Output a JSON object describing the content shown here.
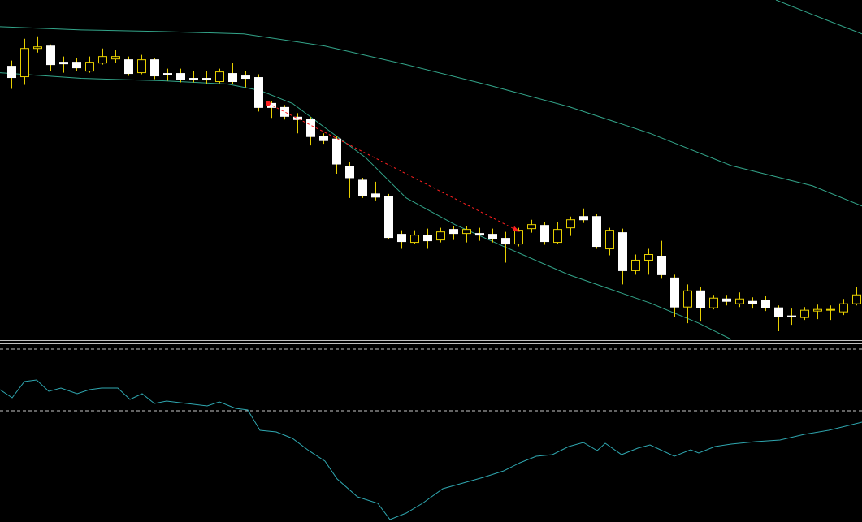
{
  "chart_data": [
    {
      "type": "candlestick",
      "xlim": [
        0,
        1061
      ],
      "ylim": [
        0,
        420
      ],
      "bull_color": "#000000",
      "bear_color": "#ffffff",
      "wick_color": "#e8d000",
      "bull_outline": "#e8d000",
      "x": [
        14,
        30,
        46,
        62,
        78,
        94,
        110,
        126,
        142,
        158,
        174,
        190,
        206,
        222,
        238,
        254,
        270,
        286,
        302,
        318,
        334,
        350,
        366,
        382,
        398,
        414,
        430,
        446,
        462,
        478,
        494,
        510,
        526,
        542,
        558,
        574,
        590,
        606,
        622,
        638,
        654,
        670,
        686,
        702,
        718,
        734,
        750,
        766,
        782,
        798,
        814,
        830,
        846,
        862,
        878,
        894,
        910,
        926,
        942,
        958,
        974,
        990,
        1006,
        1022,
        1038,
        1054
      ],
      "open": [
        338,
        325,
        360,
        363,
        343,
        343,
        332,
        342,
        347,
        346,
        330,
        346,
        329,
        329,
        323,
        323,
        319,
        329,
        326,
        324,
        292,
        287,
        275,
        272,
        251,
        248,
        214,
        197,
        180,
        177,
        130,
        120,
        129,
        123,
        136,
        131,
        131,
        130,
        125,
        118,
        137,
        141,
        120,
        138,
        152,
        152,
        112,
        132,
        85,
        98,
        103,
        76,
        40,
        60,
        39,
        50,
        44,
        47,
        48,
        39,
        29,
        27,
        35,
        36,
        34,
        44
      ],
      "high": [
        345,
        372,
        375,
        365,
        350,
        348,
        350,
        360,
        358,
        350,
        352,
        348,
        335,
        335,
        332,
        332,
        335,
        342,
        332,
        328,
        295,
        290,
        280,
        275,
        255,
        252,
        220,
        200,
        195,
        180,
        135,
        135,
        137,
        138,
        140,
        140,
        138,
        137,
        133,
        138,
        148,
        145,
        145,
        152,
        162,
        155,
        138,
        137,
        105,
        112,
        122,
        80,
        68,
        65,
        55,
        55,
        58,
        52,
        54,
        42,
        38,
        40,
        43,
        42,
        50,
        65
      ],
      "low": [
        310,
        315,
        355,
        332,
        330,
        332,
        330,
        340,
        342,
        326,
        328,
        322,
        320,
        318,
        318,
        316,
        317,
        316,
        312,
        282,
        274,
        272,
        255,
        240,
        242,
        205,
        175,
        175,
        172,
        124,
        112,
        118,
        112,
        120,
        123,
        120,
        122,
        120,
        95,
        115,
        132,
        117,
        118,
        128,
        144,
        112,
        104,
        68,
        80,
        80,
        75,
        28,
        20,
        22,
        37,
        42,
        40,
        38,
        35,
        10,
        18,
        24,
        25,
        24,
        30,
        42
      ],
      "close": [
        324,
        360,
        362,
        340,
        341,
        336,
        343,
        350,
        350,
        329,
        346,
        326,
        328,
        322,
        321,
        321,
        331,
        319,
        323,
        287,
        287,
        276,
        272,
        251,
        246,
        217,
        200,
        178,
        176,
        126,
        121,
        129,
        122,
        133,
        131,
        136,
        129,
        125,
        118,
        135,
        142,
        121,
        136,
        148,
        148,
        115,
        135,
        85,
        98,
        105,
        80,
        40,
        60,
        39,
        51,
        47,
        50,
        44,
        39,
        28,
        28,
        36,
        37,
        37,
        44,
        55
      ],
      "lines": [
        {
          "color": "#33a58a",
          "x": [
            0,
            100,
            200,
            300,
            400,
            500,
            600,
            700,
            800,
            900,
            1000,
            1061
          ],
          "values": [
            387,
            383,
            381,
            378,
            363,
            340,
            315,
            288,
            255,
            215,
            190,
            165
          ]
        },
        {
          "color": "#33a58a",
          "x": [
            955,
            1000,
            1061
          ],
          "values": [
            420,
            402,
            378
          ]
        },
        {
          "color": "#33a58a",
          "x": [
            0,
            100,
            200,
            280,
            320,
            360,
            400,
            450,
            500,
            560,
            620,
            700,
            800,
            860,
            900
          ],
          "values": [
            330,
            323,
            320,
            316,
            308,
            292,
            262,
            225,
            175,
            142,
            115,
            80,
            45,
            20,
            0
          ]
        }
      ],
      "arrow": {
        "color": "#ff2020",
        "x": [
          330,
          640
        ],
        "values": [
          292,
          133
        ]
      }
    },
    {
      "type": "line",
      "xlim": [
        0,
        1061
      ],
      "ylim": [
        0,
        218
      ],
      "levels": [
        213,
        137
      ],
      "level_color": "#c8c8c8",
      "series": [
        {
          "color": "#2fa7b0",
          "x": [
            0,
            15,
            30,
            45,
            60,
            75,
            95,
            110,
            125,
            145,
            160,
            175,
            190,
            205,
            230,
            255,
            270,
            290,
            305,
            320,
            340,
            360,
            380,
            400,
            415,
            440,
            465,
            480,
            500,
            520,
            545,
            570,
            595,
            620,
            640,
            660,
            680,
            700,
            718,
            735,
            745,
            765,
            785,
            800,
            815,
            830,
            850,
            860,
            880,
            900,
            930,
            960,
            990,
            1020,
            1061
          ],
          "values": [
            163,
            153,
            173,
            175,
            161,
            165,
            158,
            163,
            165,
            165,
            151,
            158,
            146,
            149,
            146,
            143,
            148,
            140,
            138,
            113,
            111,
            103,
            88,
            75,
            53,
            31,
            23,
            3,
            11,
            23,
            41,
            48,
            55,
            63,
            73,
            81,
            83,
            93,
            98,
            88,
            97,
            83,
            91,
            95,
            88,
            81,
            89,
            85,
            93,
            96,
            99,
            101,
            108,
            113,
            123
          ]
        }
      ]
    }
  ]
}
